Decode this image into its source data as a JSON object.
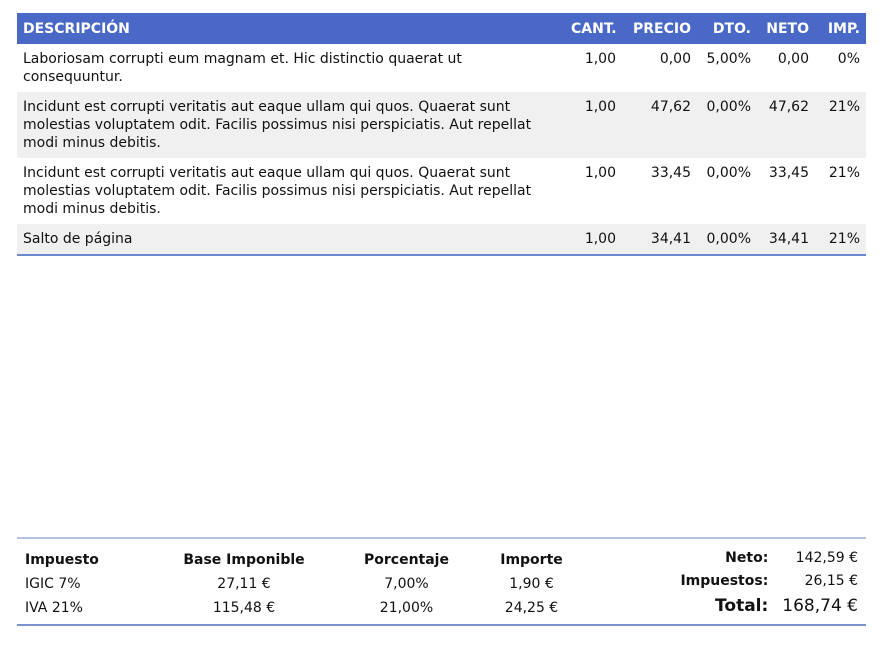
{
  "invoice_lines": {
    "headers": [
      "DESCRIPCIÓN",
      "CANT.",
      "PRECIO",
      "DTO.",
      "NETO",
      "IMP."
    ],
    "rows": [
      [
        "Laboriosam corrupti eum magnam et. Hic distinctio quaerat ut consequuntur.",
        "1,00",
        "0,00",
        "5,00%",
        "0,00",
        "0%"
      ],
      [
        "Incidunt est corrupti veritatis aut eaque ullam qui quos. Quaerat sunt molestias voluptatem odit. Facilis possimus nisi perspiciatis. Aut repellat modi minus debitis.",
        "1,00",
        "47,62",
        "0,00%",
        "47,62",
        "21%"
      ],
      [
        "Incidunt est corrupti veritatis aut eaque ullam qui quos. Quaerat sunt molestias voluptatem odit. Facilis possimus nisi perspiciatis. Aut repellat modi minus debitis.",
        "1,00",
        "33,45",
        "0,00%",
        "33,45",
        "21%"
      ],
      [
        "Salto de página",
        "1,00",
        "34,41",
        "0,00%",
        "34,41",
        "21%"
      ]
    ]
  },
  "taxes": {
    "headers": [
      "Impuesto",
      "Base Imponible",
      "Porcentaje",
      "Importe"
    ],
    "rows": [
      [
        "IGIC 7%",
        "27,11 €",
        "7,00%",
        "1,90 €"
      ],
      [
        "IVA 21%",
        "115,48 €",
        "21,00%",
        "24,25 €"
      ]
    ]
  },
  "totals": [
    {
      "label": "Neto:",
      "value": "142,59 €"
    },
    {
      "label": "Impuestos:",
      "value": "26,15 €"
    },
    {
      "label": "Total:",
      "value": "168,74 €"
    }
  ]
}
